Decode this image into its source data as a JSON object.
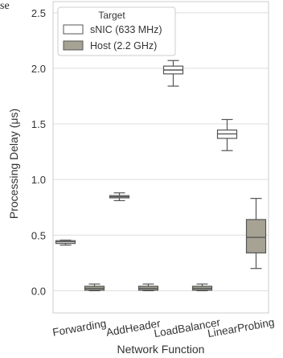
{
  "crop_fragment": {
    "text": "se"
  },
  "chart_data": {
    "type": "box",
    "title": "",
    "xlabel": "Network Function",
    "ylabel": "Processing Delay (μs)",
    "ylim": [
      -0.2,
      2.6
    ],
    "yticks": [
      "0.0",
      "0.5",
      "1.0",
      "1.5",
      "2.0",
      "2.5"
    ],
    "categories": [
      "Forwarding",
      "AddHeader",
      "LoadBalancer",
      "LinearProbing"
    ],
    "grid": "horizontal",
    "legend": {
      "title": "Target",
      "placement": "top-left"
    },
    "series": [
      {
        "name": "sNIC (633 MHz)",
        "color": "#ffffff",
        "boxes": [
          {
            "whislo": 0.41,
            "q1": 0.425,
            "med": 0.44,
            "q3": 0.45,
            "whishi": 0.455
          },
          {
            "whislo": 0.81,
            "q1": 0.835,
            "med": 0.845,
            "q3": 0.855,
            "whishi": 0.88
          },
          {
            "whislo": 1.84,
            "q1": 1.95,
            "med": 1.985,
            "q3": 2.02,
            "whishi": 2.07
          },
          {
            "whislo": 1.26,
            "q1": 1.37,
            "med": 1.41,
            "q3": 1.445,
            "whishi": 1.54
          }
        ]
      },
      {
        "name": "Host (2.2 GHz)",
        "color": "#a6a394",
        "boxes": [
          {
            "whislo": 0.0,
            "q1": 0.005,
            "med": 0.02,
            "q3": 0.04,
            "whishi": 0.06
          },
          {
            "whislo": 0.0,
            "q1": 0.005,
            "med": 0.02,
            "q3": 0.04,
            "whishi": 0.06
          },
          {
            "whislo": 0.0,
            "q1": 0.005,
            "med": 0.02,
            "q3": 0.04,
            "whishi": 0.06
          },
          {
            "whislo": 0.2,
            "q1": 0.34,
            "med": 0.48,
            "q3": 0.64,
            "whishi": 0.83
          }
        ]
      }
    ]
  }
}
